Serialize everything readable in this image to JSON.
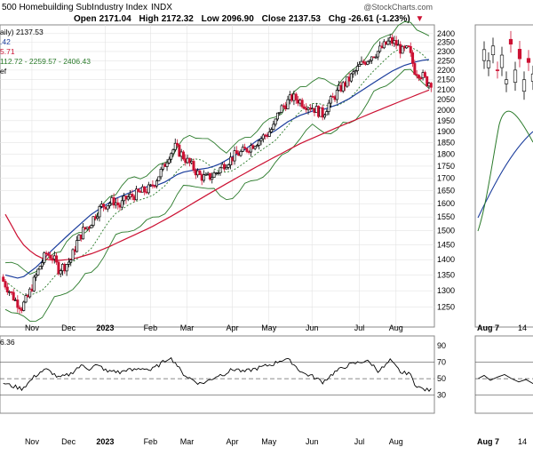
{
  "header": {
    "title": "500 Homebuilding SubIndustry Index",
    "exchange": "INDX",
    "watermark": "@StockCharts.com",
    "open_label": "Open",
    "open_value": "2171.04",
    "high_label": "High",
    "high_value": "2172.32",
    "low_label": "Low",
    "low_value": "2096.90",
    "close_label": "Close",
    "close_value": "2137.53",
    "chg_label": "Chg",
    "chg_value": "-26.61 (-1.23%)",
    "chg_arrow": "▼"
  },
  "legend": {
    "line1": "aily) 2137.53",
    "line2": ".42",
    "line3": "5.71",
    "line4": "112.72 - 2259.57 - 2406.43",
    "line5": "ef"
  },
  "rsi_label": "6.36",
  "colors": {
    "up": "#000000",
    "down": "#cc1133",
    "ma50": "#1a3c9c",
    "ma200": "#cc1133",
    "ma20": "#2a7a2a",
    "bollinger": "#2a7a2a",
    "chg_red": "#cc1133",
    "grid": "#e3e3e3"
  },
  "chart_data": [
    {
      "type": "candlestick",
      "panel": "price-main",
      "y_ticks": [
        1250,
        1300,
        1350,
        1400,
        1450,
        1500,
        1550,
        1600,
        1650,
        1700,
        1750,
        1800,
        1850,
        1900,
        1950,
        2000,
        2050,
        2100,
        2150,
        2200,
        2250,
        2300,
        2350,
        2400
      ],
      "ylim": [
        1200,
        2440
      ],
      "y_scale": "log",
      "x_labels": [
        {
          "text": "Nov",
          "bold": false
        },
        {
          "text": "Dec",
          "bold": false
        },
        {
          "text": "2023",
          "bold": true
        },
        {
          "text": "Feb",
          "bold": false
        },
        {
          "text": "Mar",
          "bold": false
        },
        {
          "text": "Apr",
          "bold": false
        },
        {
          "text": "May",
          "bold": false
        },
        {
          "text": "Jun",
          "bold": false
        },
        {
          "text": "Jul",
          "bold": false
        },
        {
          "text": "Aug",
          "bold": false
        }
      ],
      "series": [
        {
          "role": "close",
          "values": [
            1330,
            1300,
            1270,
            1250,
            1280,
            1330,
            1380,
            1420,
            1410,
            1370,
            1380,
            1400,
            1460,
            1500,
            1520,
            1560,
            1590,
            1600,
            1610,
            1590,
            1620,
            1630,
            1640,
            1650,
            1660,
            1700,
            1740,
            1800,
            1830,
            1800,
            1770,
            1740,
            1710,
            1700,
            1710,
            1730,
            1760,
            1780,
            1800,
            1810,
            1830,
            1850,
            1870,
            1890,
            1920,
            2000,
            2030,
            2060,
            2050,
            2030,
            2020,
            2000,
            1980,
            2030,
            2070,
            2110,
            2140,
            2180,
            2220,
            2250,
            2280,
            2300,
            2330,
            2360,
            2340,
            2300,
            2310,
            2200,
            2180,
            2138
          ]
        },
        {
          "role": "ma50",
          "values": [
            1350,
            1345,
            1340,
            1345,
            1360,
            1375,
            1395,
            1420,
            1440,
            1460,
            1480,
            1500,
            1520,
            1540,
            1560,
            1575,
            1590,
            1605,
            1620,
            1630,
            1640,
            1650,
            1660,
            1665,
            1670,
            1675,
            1685,
            1700,
            1715,
            1725,
            1730,
            1735,
            1738,
            1742,
            1750,
            1760,
            1775,
            1790,
            1805,
            1820,
            1840,
            1860,
            1875,
            1890,
            1905,
            1925,
            1945,
            1960,
            1975,
            1985,
            1995,
            2000,
            2005,
            2015,
            2025,
            2040,
            2055,
            2075,
            2095,
            2115,
            2135,
            2155,
            2175,
            2195,
            2210,
            2225,
            2235,
            2245,
            2252,
            2256
          ]
        },
        {
          "role": "ma200",
          "values": [
            1560,
            1520,
            1480,
            1450,
            1430,
            1415,
            1405,
            1400,
            1398,
            1398,
            1400,
            1403,
            1408,
            1414,
            1420,
            1428,
            1436,
            1445,
            1455,
            1465,
            1475,
            1485,
            1495,
            1505,
            1516,
            1528,
            1540,
            1553,
            1566,
            1580,
            1594,
            1608,
            1622,
            1636,
            1650,
            1664,
            1678,
            1692,
            1706,
            1720,
            1734,
            1748,
            1762,
            1776,
            1790,
            1804,
            1818,
            1832,
            1846,
            1858,
            1870,
            1882,
            1894,
            1906,
            1918,
            1930,
            1942,
            1954,
            1966,
            1978,
            1990,
            2002,
            2014,
            2026,
            2038,
            2050,
            2062,
            2074,
            2086,
            2098
          ]
        }
      ]
    },
    {
      "type": "line",
      "panel": "rsi-main",
      "y_ticks": [
        30,
        50,
        70,
        90
      ],
      "ylim": [
        10,
        100
      ],
      "reference_lines": [
        30,
        50,
        70
      ],
      "series": [
        {
          "role": "rsi",
          "values": [
            45,
            42,
            40,
            38,
            44,
            52,
            58,
            61,
            57,
            51,
            53,
            56,
            63,
            66,
            62,
            66,
            64,
            58,
            60,
            57,
            61,
            60,
            62,
            63,
            60,
            65,
            70,
            76,
            70,
            58,
            52,
            48,
            44,
            46,
            50,
            54,
            56,
            60,
            62,
            58,
            60,
            62,
            64,
            66,
            68,
            72,
            74,
            70,
            62,
            56,
            54,
            50,
            46,
            52,
            58,
            62,
            66,
            68,
            70,
            72,
            68,
            60,
            64,
            72,
            64,
            56,
            58,
            44,
            38,
            36
          ]
        }
      ]
    },
    {
      "type": "candlestick",
      "panel": "price-inset",
      "x_labels": [
        {
          "text": "Aug",
          "bold": true
        },
        {
          "text": "7",
          "bold": false
        },
        {
          "text": "14",
          "bold": false
        }
      ]
    }
  ]
}
